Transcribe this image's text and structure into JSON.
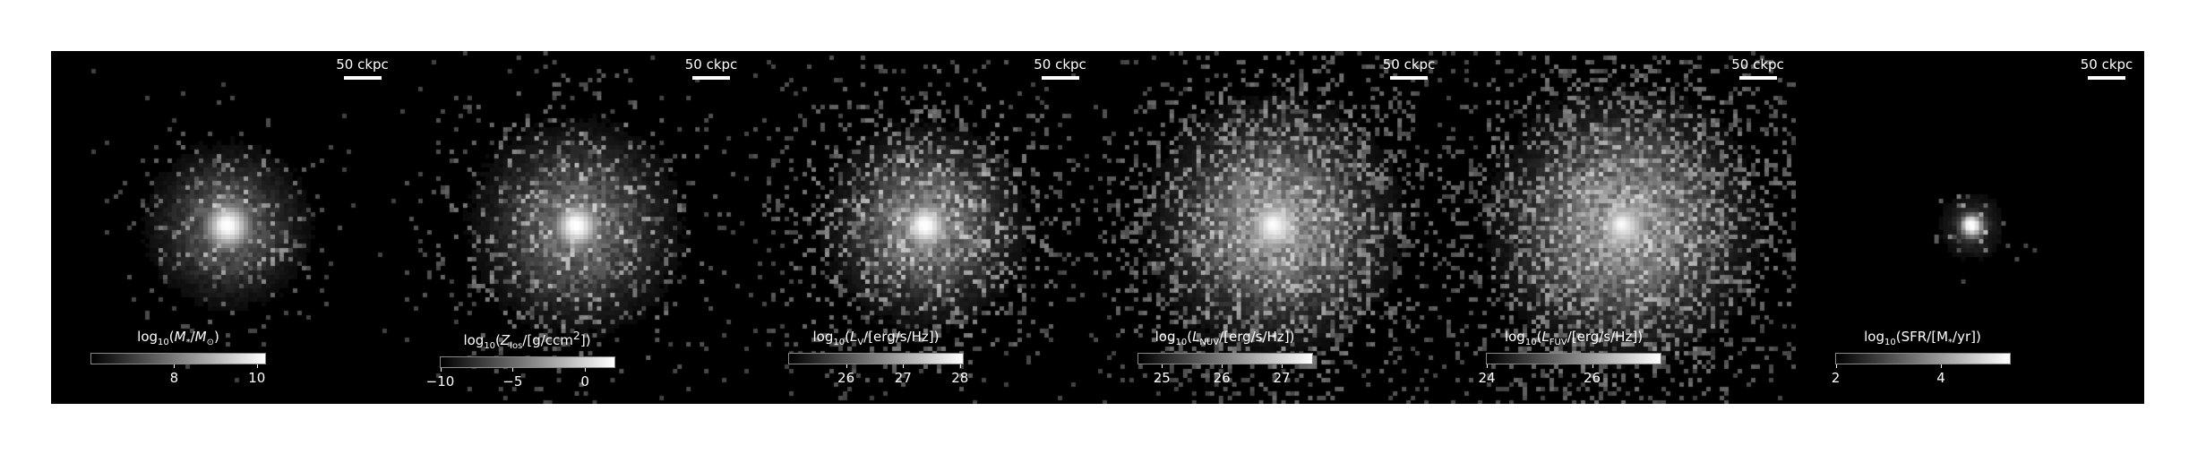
{
  "figure": {
    "panels": [
      {
        "id": "stellar-mass",
        "scalebar_label": "50 ckpc",
        "colorbar_title_html": "log<sub>10</sub>(<i>M</i><sub>*</sub>/<i>M</i><sub>&#8857;</sub>)",
        "colorbar_range": [
          6,
          10.2
        ],
        "colorbar_ticks": [
          {
            "value": 8,
            "label": "8"
          },
          {
            "value": 10,
            "label": "10"
          }
        ],
        "image": {
          "core": 1.0,
          "core_radius": 0.05,
          "halo": 0.55,
          "halo_radius": 0.11,
          "spread": 0.16,
          "noise": 0.25
        }
      },
      {
        "id": "metal-surface-density",
        "scalebar_label": "50 ckpc",
        "colorbar_title_html": "log<sub>10</sub>(<i>Z</i><sub>los</sub>/[g/ccm<sup>2</sup>])",
        "colorbar_range": [
          -10,
          2
        ],
        "colorbar_ticks": [
          {
            "value": -10,
            "label": "−10"
          },
          {
            "value": -5,
            "label": "−5"
          },
          {
            "value": 0,
            "label": "0"
          }
        ],
        "image": {
          "core": 1.0,
          "core_radius": 0.05,
          "halo": 0.6,
          "halo_radius": 0.14,
          "spread": 0.24,
          "noise": 0.35
        }
      },
      {
        "id": "v-band-luminosity",
        "scalebar_label": "50 ckpc",
        "colorbar_title_html": "log<sub>10</sub>(<i>L</i><sub>V</sub>/[erg/s/Hz])",
        "colorbar_range": [
          25,
          28.05
        ],
        "colorbar_ticks": [
          {
            "value": 26,
            "label": "26"
          },
          {
            "value": 27,
            "label": "27"
          },
          {
            "value": 28,
            "label": "28"
          }
        ],
        "image": {
          "core": 1.0,
          "core_radius": 0.05,
          "halo": 0.7,
          "halo_radius": 0.13,
          "spread": 0.26,
          "noise": 0.45
        }
      },
      {
        "id": "nuv-luminosity",
        "scalebar_label": "50 ckpc",
        "colorbar_title_html": "log<sub>10</sub>(<i>L</i><sub>NUV</sub>/[erg/s/Hz])",
        "colorbar_range": [
          24.6,
          27.5
        ],
        "colorbar_ticks": [
          {
            "value": 25,
            "label": "25"
          },
          {
            "value": 26,
            "label": "26"
          },
          {
            "value": 27,
            "label": "27"
          }
        ],
        "image": {
          "core": 0.95,
          "core_radius": 0.06,
          "halo": 0.8,
          "halo_radius": 0.16,
          "spread": 0.3,
          "noise": 0.6
        }
      },
      {
        "id": "fuv-luminosity",
        "scalebar_label": "50 ckpc",
        "colorbar_title_html": "log<sub>10</sub>(<i>L</i><sub>FUV</sub>/[erg/s/Hz])",
        "colorbar_range": [
          24,
          27.3
        ],
        "colorbar_ticks": [
          {
            "value": 24,
            "label": "24"
          },
          {
            "value": 26,
            "label": "26"
          }
        ],
        "image": {
          "core": 0.9,
          "core_radius": 0.06,
          "halo": 0.8,
          "halo_radius": 0.17,
          "spread": 0.32,
          "noise": 0.65
        }
      },
      {
        "id": "star-formation-rate",
        "scalebar_label": "50 ckpc",
        "colorbar_title_html": "log<sub>10</sub>(SFR/[M<sub>*</sub>/yr])",
        "colorbar_range": [
          2,
          5.3
        ],
        "colorbar_ticks": [
          {
            "value": 2,
            "label": "2"
          },
          {
            "value": 4,
            "label": "4"
          }
        ],
        "image": {
          "core": 1.0,
          "core_radius": 0.025,
          "halo": 0.3,
          "halo_radius": 0.05,
          "spread": 0.07,
          "noise": 0.12
        }
      }
    ]
  }
}
